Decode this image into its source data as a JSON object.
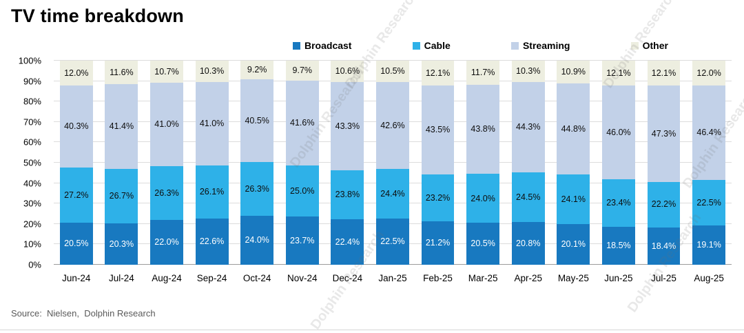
{
  "title": "TV time breakdown",
  "source": "Source:  Nielsen,  Dolphin Research",
  "watermark": {
    "text": "Dolphin Research"
  },
  "chart_data": {
    "type": "bar",
    "stacked": true,
    "title": "TV time breakdown",
    "xlabel": "",
    "ylabel": "",
    "ylim": [
      0,
      100
    ],
    "ytick_step": 10,
    "ytick_labels": [
      "0%",
      "10%",
      "20%",
      "30%",
      "40%",
      "50%",
      "60%",
      "70%",
      "80%",
      "90%",
      "100%"
    ],
    "grid": true,
    "legend_position": "top",
    "categories": [
      "Jun-24",
      "Jul-24",
      "Aug-24",
      "Sep-24",
      "Oct-24",
      "Nov-24",
      "Dec-24",
      "Jan-25",
      "Feb-25",
      "Mar-25",
      "Apr-25",
      "May-25",
      "Jun-25",
      "Jul-25",
      "Aug-25"
    ],
    "series": [
      {
        "name": "Broadcast",
        "color": "#1879c0",
        "label_color": "#ffffff",
        "values": [
          20.5,
          20.3,
          22.0,
          22.6,
          24.0,
          23.7,
          22.4,
          22.5,
          21.2,
          20.5,
          20.8,
          20.1,
          18.5,
          18.4,
          19.1
        ]
      },
      {
        "name": "Cable",
        "color": "#2eb1e8",
        "label_color": "#0d0d0d",
        "values": [
          27.2,
          26.7,
          26.3,
          26.1,
          26.3,
          25.0,
          23.8,
          24.4,
          23.2,
          24.0,
          24.5,
          24.1,
          23.4,
          22.2,
          22.5
        ]
      },
      {
        "name": "Streaming",
        "color": "#c2d1e8",
        "label_color": "#0d0d0d",
        "values": [
          40.3,
          41.4,
          41.0,
          41.0,
          40.5,
          41.6,
          43.3,
          42.6,
          43.5,
          43.8,
          44.3,
          44.8,
          46.0,
          47.3,
          46.4
        ]
      },
      {
        "name": "Other",
        "color": "#edeee0",
        "label_color": "#0d0d0d",
        "values": [
          12.0,
          11.6,
          10.7,
          10.3,
          9.2,
          9.7,
          10.6,
          10.5,
          12.1,
          11.7,
          10.3,
          10.9,
          12.1,
          12.1,
          12.0
        ]
      }
    ]
  }
}
